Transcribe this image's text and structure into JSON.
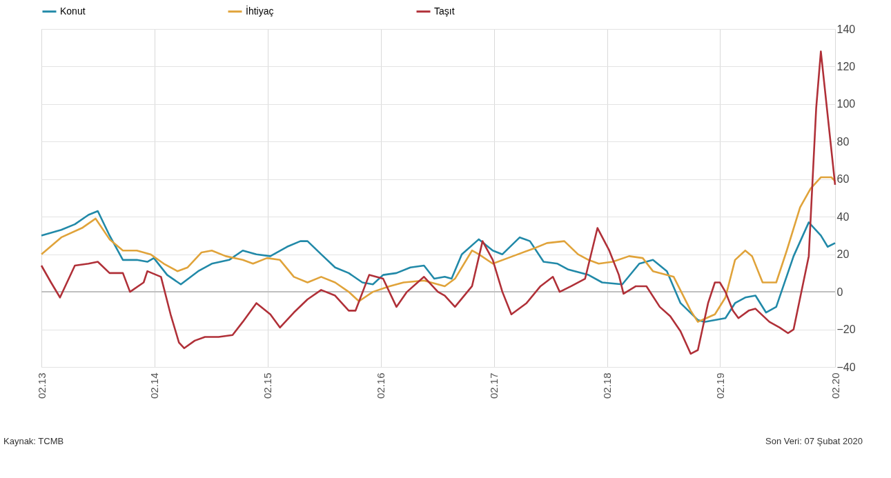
{
  "chart_data": {
    "type": "line",
    "xlim": [
      "2013-02-01",
      "2020-02-07"
    ],
    "ylim": [
      -40,
      140
    ],
    "xticks": [
      {
        "value": "2013-02-01",
        "label": "02.13"
      },
      {
        "value": "2014-02-01",
        "label": "02.14"
      },
      {
        "value": "2015-02-01",
        "label": "02.15"
      },
      {
        "value": "2016-02-01",
        "label": "02.16"
      },
      {
        "value": "2017-02-01",
        "label": "02.17"
      },
      {
        "value": "2018-02-01",
        "label": "02.18"
      },
      {
        "value": "2019-02-01",
        "label": "02.19"
      },
      {
        "value": "2020-02-07",
        "label": "02.20"
      }
    ],
    "yticks": [
      -40,
      -20,
      0,
      20,
      40,
      60,
      80,
      100,
      120,
      140
    ],
    "grid": true,
    "legend": "top",
    "line_style": "solid",
    "marker": "none",
    "ref_lines": [
      {
        "axis": "y",
        "value": 0,
        "color": "#bfbfbf"
      }
    ],
    "annotations": [
      "Kaynak: TCMB",
      "Son Veri: 07 Şubat 2020"
    ],
    "series": [
      {
        "name": "Konut",
        "color": "#2189a8",
        "x": [
          "2013-02-01",
          "2013-04-06",
          "2013-05-20",
          "2013-07-03",
          "2013-08-02",
          "2013-09-09",
          "2013-10-22",
          "2013-12-06",
          "2014-01-09",
          "2014-01-30",
          "2014-03-14",
          "2014-04-27",
          "2014-06-22",
          "2014-08-05",
          "2014-09-30",
          "2014-11-13",
          "2014-12-27",
          "2015-02-10",
          "2015-04-05",
          "2015-05-18",
          "2015-06-10",
          "2015-07-24",
          "2015-09-07",
          "2015-10-21",
          "2015-12-04",
          "2016-01-07",
          "2016-02-09",
          "2016-03-23",
          "2016-05-07",
          "2016-06-20",
          "2016-07-23",
          "2016-08-26",
          "2016-09-17",
          "2016-10-20",
          "2016-12-14",
          "2017-01-28",
          "2017-02-28",
          "2017-04-25",
          "2017-05-28",
          "2017-07-11",
          "2017-08-25",
          "2017-09-27",
          "2017-12-03",
          "2018-01-16",
          "2018-03-22",
          "2018-05-16",
          "2018-06-29",
          "2018-08-13",
          "2018-09-26",
          "2018-11-21",
          "2018-12-12",
          "2019-02-18",
          "2019-03-21",
          "2019-04-23",
          "2019-05-26",
          "2019-06-29",
          "2019-08-01",
          "2019-09-26",
          "2019-11-14",
          "2019-12-23",
          "2020-01-14",
          "2020-02-07"
        ],
        "values": [
          30,
          33,
          36,
          41,
          43,
          30,
          17,
          17,
          16,
          18,
          9,
          4,
          11,
          15,
          17,
          22,
          20,
          19,
          24,
          27,
          27,
          20,
          13,
          10,
          5,
          4,
          9,
          10,
          13,
          14,
          7,
          8,
          7,
          20,
          28,
          22,
          20,
          29,
          27,
          16,
          15,
          12,
          9,
          5,
          4,
          15,
          17,
          11,
          -6,
          -15,
          -16,
          -14,
          -6,
          -3,
          -2,
          -11,
          -8,
          19,
          37,
          30,
          24,
          26
        ]
      },
      {
        "name": "İhtiyaç",
        "color": "#e0a33a",
        "x": [
          "2013-02-01",
          "2013-04-06",
          "2013-06-12",
          "2013-07-26",
          "2013-09-09",
          "2013-10-22",
          "2013-12-06",
          "2014-01-19",
          "2014-03-03",
          "2014-04-16",
          "2014-05-19",
          "2014-07-03",
          "2014-08-05",
          "2014-09-19",
          "2014-11-13",
          "2014-12-16",
          "2015-01-30",
          "2015-03-13",
          "2015-04-27",
          "2015-06-10",
          "2015-07-24",
          "2015-09-07",
          "2015-10-21",
          "2015-11-23",
          "2016-01-07",
          "2016-03-01",
          "2016-04-15",
          "2016-06-20",
          "2016-08-26",
          "2016-09-28",
          "2016-11-22",
          "2016-12-14",
          "2017-01-28",
          "2017-04-03",
          "2017-06-08",
          "2017-07-22",
          "2017-09-16",
          "2017-10-30",
          "2017-12-03",
          "2018-01-05",
          "2018-02-19",
          "2018-04-13",
          "2018-05-27",
          "2018-06-29",
          "2018-09-04",
          "2018-10-29",
          "2018-11-21",
          "2019-01-15",
          "2019-02-18",
          "2019-03-21",
          "2019-04-23",
          "2019-05-15",
          "2019-06-18",
          "2019-08-01",
          "2019-09-04",
          "2019-10-17",
          "2019-11-20",
          "2019-12-23",
          "2020-01-26",
          "2020-02-07"
        ],
        "values": [
          20,
          29,
          34,
          39,
          28,
          22,
          22,
          20,
          15,
          11,
          13,
          21,
          22,
          19,
          17,
          15,
          18,
          17,
          8,
          5,
          8,
          5,
          0,
          -5,
          0,
          3,
          5,
          6,
          3,
          7,
          22,
          20,
          15,
          19,
          23,
          26,
          27,
          20,
          17,
          15,
          16,
          19,
          18,
          11,
          8,
          -10,
          -16,
          -12,
          -3,
          17,
          22,
          19,
          5,
          5,
          22,
          45,
          55,
          61,
          61,
          59
        ]
      },
      {
        "name": "Taşıt",
        "color": "#b03038",
        "x": [
          "2013-02-01",
          "2013-03-04",
          "2013-04-02",
          "2013-05-20",
          "2013-07-03",
          "2013-08-02",
          "2013-09-09",
          "2013-10-22",
          "2013-11-14",
          "2013-12-28",
          "2014-01-09",
          "2014-02-22",
          "2014-03-25",
          "2014-04-21",
          "2014-05-08",
          "2014-06-11",
          "2014-07-14",
          "2014-08-27",
          "2014-10-11",
          "2014-11-13",
          "2014-12-27",
          "2015-02-10",
          "2015-03-13",
          "2015-04-27",
          "2015-06-10",
          "2015-07-24",
          "2015-09-07",
          "2015-10-21",
          "2015-11-12",
          "2015-12-26",
          "2016-02-09",
          "2016-03-23",
          "2016-04-26",
          "2016-06-20",
          "2016-08-04",
          "2016-08-26",
          "2016-09-28",
          "2016-11-22",
          "2016-12-26",
          "2017-01-28",
          "2017-02-28",
          "2017-03-29",
          "2017-05-17",
          "2017-07-01",
          "2017-08-10",
          "2017-09-01",
          "2017-10-08",
          "2017-11-22",
          "2018-01-01",
          "2018-02-08",
          "2018-03-11",
          "2018-03-26",
          "2018-05-05",
          "2018-06-08",
          "2018-07-21",
          "2018-08-24",
          "2018-09-26",
          "2018-10-29",
          "2018-11-21",
          "2018-12-24",
          "2019-01-15",
          "2019-01-31",
          "2019-02-18",
          "2019-03-14",
          "2019-04-01",
          "2019-05-04",
          "2019-05-26",
          "2019-07-10",
          "2019-08-12",
          "2019-09-08",
          "2019-09-26",
          "2019-11-14",
          "2019-12-08",
          "2019-12-23",
          "2020-01-14",
          "2020-02-07"
        ],
        "values": [
          14,
          5,
          -3,
          14,
          15,
          16,
          10,
          10,
          0,
          5,
          11,
          8,
          -12,
          -27,
          -30,
          -26,
          -24,
          -24,
          -23,
          -16,
          -6,
          -12,
          -19,
          -11,
          -4,
          1,
          -2,
          -10,
          -10,
          9,
          7,
          -8,
          0,
          8,
          0,
          -2,
          -8,
          3,
          27,
          17,
          0,
          -12,
          -6,
          3,
          8,
          0,
          3,
          7,
          34,
          22,
          9,
          -1,
          3,
          3,
          -8,
          -13,
          -21,
          -33,
          -31,
          -6,
          5,
          5,
          0,
          -10,
          -14,
          -10,
          -9,
          -16,
          -19,
          -22,
          -20,
          19,
          98,
          128,
          94,
          57
        ]
      }
    ]
  }
}
